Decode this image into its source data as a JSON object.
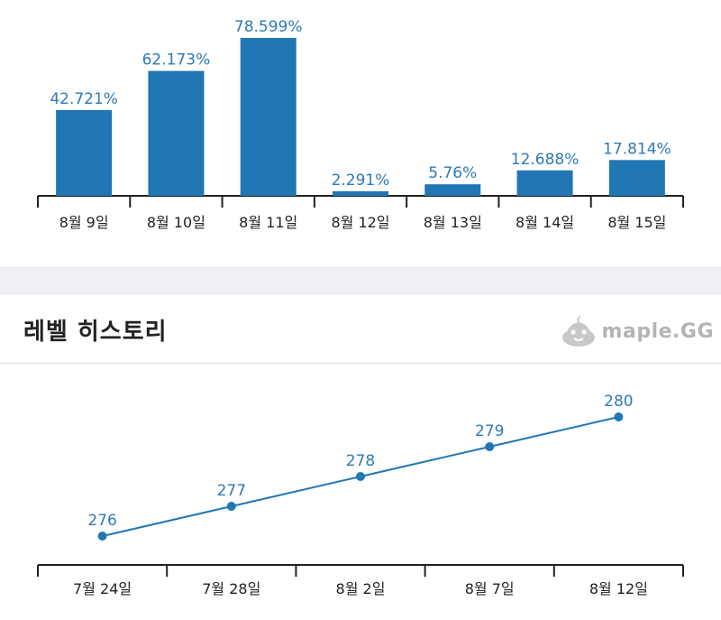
{
  "section": {
    "title": "레벨 히스토리",
    "brand": "maple.GG"
  },
  "chart_data": [
    {
      "type": "bar",
      "categories": [
        "8월 9일",
        "8월 10일",
        "8월 11일",
        "8월 12일",
        "8월 13일",
        "8월 14일",
        "8월 15일"
      ],
      "values": [
        42.721,
        62.173,
        78.599,
        2.291,
        5.76,
        12.688,
        17.814
      ],
      "value_labels": [
        "42.721%",
        "62.173%",
        "78.599%",
        "2.291%",
        "5.76%",
        "12.688%",
        "17.814%"
      ],
      "ylim": [
        0,
        78.599
      ],
      "grid": false,
      "color": "#2176b4"
    },
    {
      "type": "line",
      "x": [
        "7월 24일",
        "7월 28일",
        "8월 2일",
        "8월 7일",
        "8월 12일"
      ],
      "values": [
        276,
        277,
        278,
        279,
        280
      ],
      "value_labels": [
        "276",
        "277",
        "278",
        "279",
        "280"
      ],
      "grid": false,
      "color": "#2176b4"
    }
  ]
}
